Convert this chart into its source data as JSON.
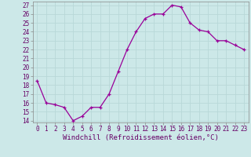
{
  "x": [
    0,
    1,
    2,
    3,
    4,
    5,
    6,
    7,
    8,
    9,
    10,
    11,
    12,
    13,
    14,
    15,
    16,
    17,
    18,
    19,
    20,
    21,
    22,
    23
  ],
  "y": [
    18.5,
    16.0,
    15.8,
    15.5,
    14.0,
    14.5,
    15.5,
    15.5,
    17.0,
    19.5,
    22.0,
    24.0,
    25.5,
    26.0,
    26.0,
    27.0,
    26.8,
    25.0,
    24.2,
    24.0,
    23.0,
    23.0,
    22.5,
    22.0
  ],
  "xlim": [
    -0.5,
    23.5
  ],
  "ylim": [
    13.8,
    27.4
  ],
  "yticks": [
    14,
    15,
    16,
    17,
    18,
    19,
    20,
    21,
    22,
    23,
    24,
    25,
    26,
    27
  ],
  "xticks": [
    0,
    1,
    2,
    3,
    4,
    5,
    6,
    7,
    8,
    9,
    10,
    11,
    12,
    13,
    14,
    15,
    16,
    17,
    18,
    19,
    20,
    21,
    22,
    23
  ],
  "xlabel": "Windchill (Refroidissement éolien,°C)",
  "line_color": "#990099",
  "marker": "+",
  "bg_color": "#cce8e8",
  "grid_color": "#aacccc",
  "tick_fontsize": 5.5,
  "label_fontsize": 6.5
}
